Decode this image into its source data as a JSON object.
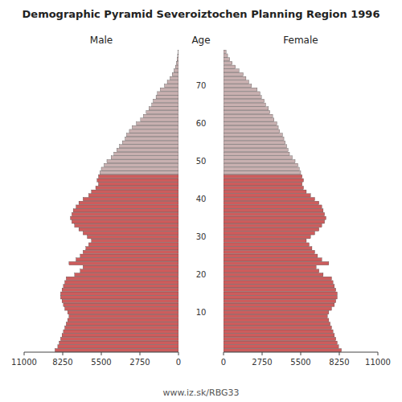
{
  "chart_data": {
    "type": "pyramid",
    "title": "Demographic Pyramid Severoiztochen Planning Region 1996",
    "annotations": [
      "www.iz.sk/RBG33"
    ],
    "ylabel": "Age",
    "orientation": "horizontal",
    "categories": [
      null,
      null,
      null,
      null,
      null,
      null,
      null,
      null,
      null,
      null,
      "10",
      null,
      null,
      null,
      null,
      null,
      null,
      null,
      null,
      null,
      "20",
      null,
      null,
      null,
      null,
      null,
      null,
      null,
      null,
      null,
      "30",
      null,
      null,
      null,
      null,
      null,
      null,
      null,
      null,
      null,
      "40",
      null,
      null,
      null,
      null,
      null,
      null,
      null,
      null,
      null,
      "50",
      null,
      null,
      null,
      null,
      null,
      null,
      null,
      null,
      null,
      "60",
      null,
      null,
      null,
      null,
      null,
      null,
      null,
      null,
      null,
      "70",
      null,
      null,
      null,
      null,
      null,
      null,
      null,
      null,
      null
    ],
    "xlim": [
      0,
      11000
    ],
    "xticks": [
      0,
      2750,
      5500,
      8250,
      11000
    ],
    "colors": [
      "#cd5c5c",
      "#cd5c5c",
      "#cd5c5c",
      "#cd5c5c",
      "#cd5c5c",
      "#cd5c5c",
      "#cd5c5c",
      "#cd5c5c",
      "#cd5c5c",
      "#cd5c5c",
      "#cd5c5c",
      "#cd5c5c",
      "#cd5c5c",
      "#cd5c5c",
      "#cd5c5c",
      "#cd5c5c",
      "#cd5c5c",
      "#cd5c5c",
      "#cd5c5c",
      "#cd5c5c",
      "#cd5c5c",
      "#cd5c5c",
      "#cd5c5c",
      "#cd5c5c",
      "#cd5c5c",
      "#cd5c5c",
      "#cd5c5c",
      "#cd5c5c",
      "#cd5c5c",
      "#cd5c5c",
      "#cd5c5c",
      "#cd5c5c",
      "#cd5c5c",
      "#cd5c5c",
      "#cd5c5c",
      "#cd5c5c",
      "#cd5c5c",
      "#cd5c5c",
      "#cd5c5c",
      "#cd5c5c",
      "#cd5c5c",
      "#cd5c5c",
      "#cd5c5c",
      "#cd5c5c",
      "#cd5c5c",
      "#cd5c5c",
      "#cd5c5c",
      "#c8b0b0",
      "#c8b0b0",
      "#c8b0b0",
      "#c8b0b0",
      "#c8b0b0",
      "#c8b0b0",
      "#c8b0b0",
      "#c8b0b0",
      "#c8b0b0",
      "#c8b0b0",
      "#c8b0b0",
      "#c8b0b0",
      "#c8b0b0",
      "#c8b0b0",
      "#c8b0b0",
      "#c8b0b0",
      "#c8b0b0",
      "#c8b0b0",
      "#c8b0b0",
      "#c8b0b0",
      "#c8b0b0",
      "#c8b0b0",
      "#c8b0b0",
      "#c8b0b0",
      "#c8b0b0",
      "#c8b0b0",
      "#c8b0b0",
      "#c8b0b0",
      "#c8b0b0",
      "#c8b0b0",
      "#c8b0b0",
      "#c8b0b0",
      "#c8b0b0"
    ],
    "series": [
      {
        "name": "Male",
        "values": [
          8800,
          8600,
          8500,
          8400,
          8300,
          8200,
          8100,
          8000,
          7900,
          7800,
          7900,
          8100,
          8200,
          8300,
          8400,
          8400,
          8300,
          8200,
          8100,
          8000,
          7400,
          7000,
          6800,
          7800,
          7300,
          7000,
          6800,
          6600,
          6400,
          6200,
          6500,
          6800,
          7100,
          7400,
          7600,
          7700,
          7600,
          7500,
          7300,
          7100,
          6800,
          6400,
          6200,
          5900,
          5700,
          5800,
          5700,
          5600,
          5500,
          5300,
          5100,
          4800,
          4600,
          4400,
          4200,
          4000,
          3800,
          3700,
          3500,
          3300,
          3000,
          2700,
          2500,
          2300,
          2100,
          1900,
          1800,
          1600,
          1500,
          1300,
          1000,
          800,
          600,
          450,
          320,
          220,
          150,
          100,
          60,
          30
        ]
      },
      {
        "name": "Female",
        "values": [
          8400,
          8200,
          8100,
          8000,
          7900,
          7800,
          7700,
          7600,
          7500,
          7400,
          7500,
          7700,
          7900,
          8000,
          8100,
          8100,
          8000,
          7900,
          7800,
          7700,
          7100,
          6800,
          6600,
          7500,
          7000,
          6700,
          6500,
          6300,
          6100,
          5900,
          6200,
          6500,
          6800,
          7000,
          7200,
          7300,
          7200,
          7100,
          7000,
          6800,
          6500,
          6200,
          5900,
          5700,
          5600,
          5700,
          5600,
          5500,
          5400,
          5300,
          5100,
          4900,
          4700,
          4600,
          4500,
          4400,
          4300,
          4200,
          4000,
          3900,
          3800,
          3600,
          3500,
          3300,
          3200,
          3000,
          2900,
          2700,
          2600,
          2400,
          2000,
          1800,
          1600,
          1400,
          1100,
          850,
          620,
          440,
          290,
          180
        ]
      }
    ]
  }
}
